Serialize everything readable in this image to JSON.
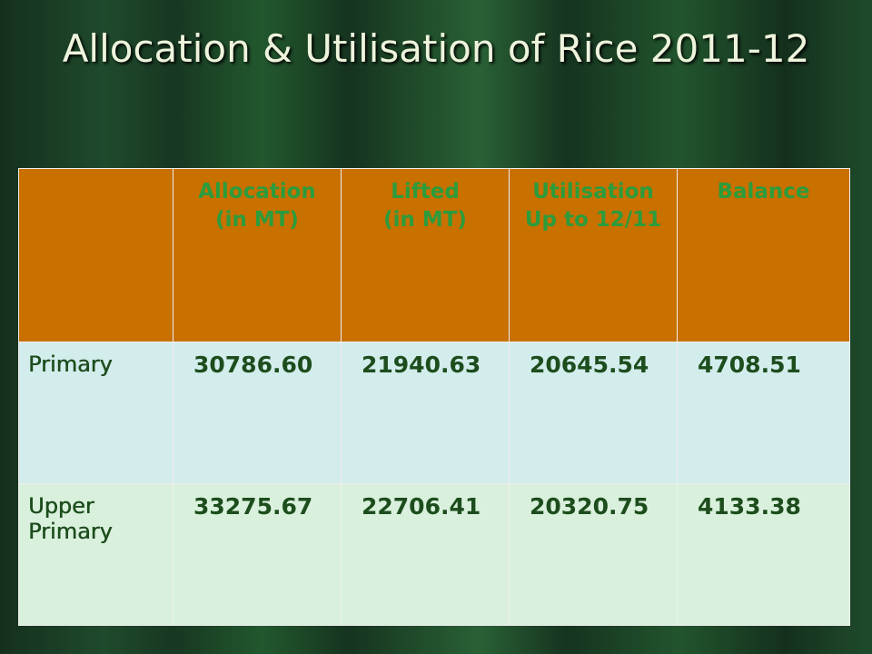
{
  "title": "Allocation & Utilisation of Rice 2011-12",
  "table": {
    "header": [
      [
        "Allocation",
        "(in MT)"
      ],
      [
        "Lifted",
        "(in MT)"
      ],
      [
        "Utilisation",
        "Up to 12/11"
      ],
      [
        "Balance"
      ]
    ],
    "rows": [
      [
        "Primary",
        "30786.60",
        "21940.63",
        "20645.54",
        "4708.51"
      ],
      [
        "Upper Primary",
        "33275.67",
        "22706.41",
        "20320.75",
        "4133.38"
      ]
    ]
  }
}
